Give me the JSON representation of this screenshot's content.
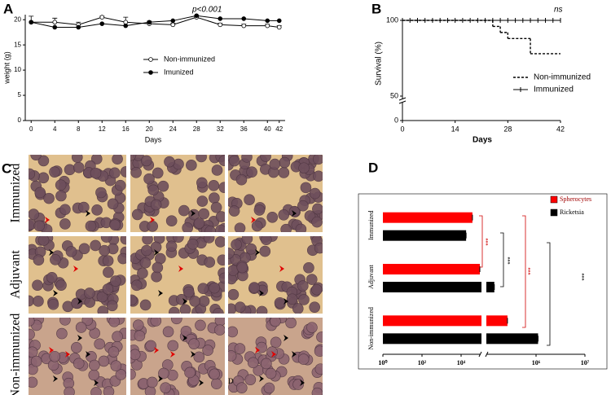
{
  "chart_data": [
    {
      "type": "line",
      "panel": "A",
      "annotation": "p<0.001",
      "xlabel": "Days",
      "ylabel": "weight (g)",
      "xlim": [
        -1,
        43
      ],
      "xticks": [
        0,
        4,
        8,
        12,
        16,
        20,
        24,
        28,
        32,
        36,
        40,
        42
      ],
      "ylim": [
        0,
        21
      ],
      "yticks": [
        0,
        5,
        10,
        15,
        20
      ],
      "x": [
        0,
        4,
        8,
        12,
        16,
        20,
        24,
        28,
        32,
        36,
        40,
        42
      ],
      "series": [
        {
          "name": "Non-immunized",
          "color": "#000000",
          "marker": "open",
          "values": [
            19.5,
            19.5,
            19,
            20.5,
            19.5,
            19.2,
            19,
            20.5,
            19,
            18.8,
            18.8,
            18.5
          ],
          "errors": [
            1.2,
            0.8,
            0.5,
            0.2,
            1,
            0.5,
            0.3,
            0.3,
            0.3,
            0.3,
            0.3,
            0.3
          ]
        },
        {
          "name": "Imunized",
          "color": "#000000",
          "marker": "filled",
          "values": [
            19.5,
            18.5,
            18.5,
            19.2,
            18.8,
            19.5,
            19.8,
            20.8,
            20.2,
            20.2,
            19.8,
            19.8
          ]
        }
      ]
    },
    {
      "type": "step",
      "panel": "B",
      "annotation": "ns",
      "xlabel": "Days",
      "ylabel": "Survival (%)",
      "xlim": [
        0,
        42
      ],
      "xticks": [
        0,
        14,
        28,
        42
      ],
      "ylim": [
        0,
        100
      ],
      "yticks": [
        0,
        50,
        100
      ],
      "ybreak": 50,
      "series": [
        {
          "name": "Non-immunized",
          "color": "#000000",
          "dash": true,
          "censor": false,
          "x": [
            0,
            24,
            26,
            28,
            34,
            42
          ],
          "values": [
            100,
            96,
            92,
            88,
            78,
            78
          ]
        },
        {
          "name": "Immunized",
          "color": "#000000",
          "dash": false,
          "censor": true,
          "x": [
            0,
            2,
            4,
            6,
            8,
            10,
            12,
            14,
            16,
            18,
            20,
            22,
            24,
            26,
            28,
            30,
            32,
            34,
            36,
            38,
            40,
            42
          ],
          "values": [
            100,
            100,
            100,
            100,
            100,
            100,
            100,
            100,
            100,
            100,
            100,
            100,
            100,
            100,
            100,
            100,
            100,
            100,
            100,
            100,
            100,
            100
          ]
        }
      ]
    },
    {
      "type": "hbar",
      "panel": "D",
      "categories": [
        "Immunized",
        "Adjuvant",
        "Non-immunized"
      ],
      "xscale": "log",
      "xlim": [
        1,
        10000000
      ],
      "xbreak": 100000,
      "xticks": [
        {
          "value": 1,
          "label": "10⁰"
        },
        {
          "value": 100,
          "label": "10²"
        },
        {
          "value": 10000,
          "label": "10⁴"
        },
        {
          "value": 1000000,
          "label": "10⁶"
        },
        {
          "value": 10000000,
          "label": "10⁷"
        }
      ],
      "series": [
        {
          "name": "Spherocytes",
          "color": "#ff0000",
          "values": [
            38000,
            91000,
            260000
          ]
        },
        {
          "name": "Ricketsia",
          "color": "#000000",
          "values": [
            18000,
            140000,
            1100000
          ]
        }
      ],
      "annotations": [
        "***",
        "***",
        "***",
        "***"
      ],
      "annotation_colors": [
        "#d00000",
        "#000000",
        "#d00000",
        "#000000"
      ]
    }
  ],
  "figure_c": {
    "panel": "C",
    "row_labels": [
      "Immunized",
      "Adjuvant",
      "Non-immunized"
    ],
    "stray_text": "D"
  }
}
